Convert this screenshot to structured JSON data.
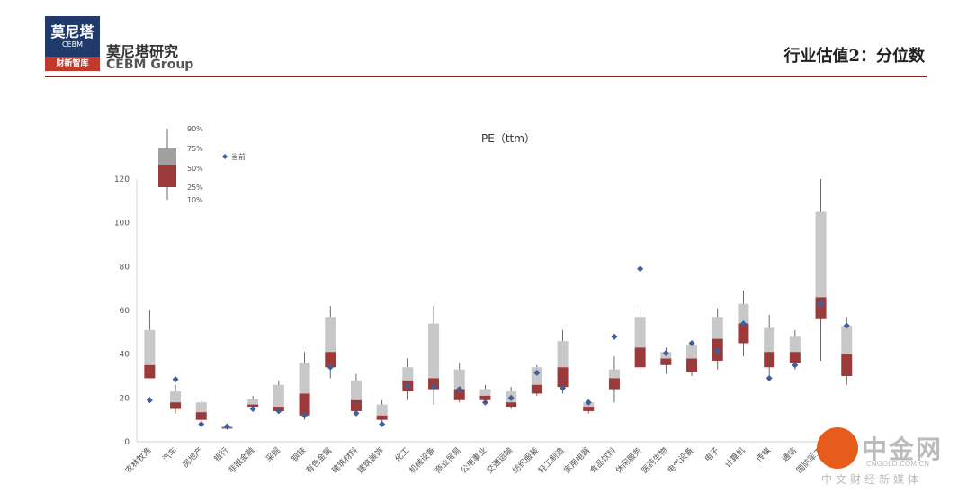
{
  "header": {
    "logo_line1": "莫尼塔",
    "logo_line2": "CEBM",
    "logo_line3": "财新智库",
    "brand_cn": "莫尼塔研究",
    "brand_en": "CEBM Group",
    "page_title": "行业估值2：分位数",
    "rule_color": "#8b1a1a"
  },
  "watermark": {
    "name": "中金网",
    "url": "CNGOLD.COM.CN",
    "subtitle": "中文财经新媒体"
  },
  "chart_data": {
    "type": "box",
    "title": "PE（ttm）",
    "ylim": [
      0,
      120
    ],
    "yticks": [
      0,
      20,
      40,
      60,
      80,
      100,
      120
    ],
    "legend": {
      "labels": [
        "90%",
        "75%",
        "50%",
        "25%",
        "10%"
      ],
      "current_label": "当前"
    },
    "colors": {
      "upper_box": "#c8c8c8",
      "lower_box": "#9b3a3a",
      "current": "#3d5f9e",
      "whisker": "#444444"
    },
    "categories": [
      "农林牧渔",
      "汽车",
      "房地产",
      "银行",
      "非银金融",
      "采掘",
      "钢铁",
      "有色金属",
      "建筑材料",
      "建筑装饰",
      "化工",
      "机械设备",
      "商业贸易",
      "公用事业",
      "交通运输",
      "纺织服装",
      "轻工制造",
      "家用电器",
      "食品饮料",
      "休闲服务",
      "医药生物",
      "电气设备",
      "电子",
      "计算机",
      "传媒",
      "通信",
      "国防军工",
      ""
    ],
    "p10": [
      29,
      13,
      9,
      5.5,
      15,
      13,
      10,
      29,
      13,
      9,
      19,
      17,
      18,
      18,
      15,
      21,
      22,
      13,
      18,
      31,
      31,
      30,
      33,
      39,
      30,
      33,
      37,
      26
    ],
    "p25": [
      29,
      15,
      10,
      6,
      16,
      14,
      12,
      34,
      14,
      10,
      23,
      24,
      19,
      19,
      16,
      22,
      25,
      14,
      24,
      34,
      35,
      32,
      37,
      45,
      34,
      36,
      56,
      30
    ],
    "p50": [
      35,
      18,
      13.5,
      6.5,
      17,
      16,
      22,
      41,
      19,
      12,
      28,
      29,
      24,
      21,
      18,
      26,
      34,
      16,
      29,
      43,
      38,
      38,
      47,
      54,
      41,
      41,
      66,
      40
    ],
    "p75": [
      51,
      23,
      18,
      7,
      19.5,
      26,
      36,
      57,
      28,
      17,
      34,
      54,
      33,
      24,
      23,
      34,
      46,
      18,
      33,
      57,
      41,
      44,
      57,
      63,
      52,
      48,
      105,
      53
    ],
    "p90": [
      60,
      26,
      19,
      7.5,
      21,
      28,
      41,
      62,
      31,
      19,
      38,
      62,
      36,
      26,
      25,
      35,
      51,
      19,
      39,
      61,
      43,
      46,
      61,
      69,
      58,
      51,
      120,
      57
    ],
    "current": [
      19,
      28.5,
      8,
      7,
      15,
      14,
      12,
      34,
      13,
      8,
      25.5,
      25,
      24,
      18,
      20,
      31.5,
      24.5,
      18,
      48,
      79,
      40.5,
      45,
      41.5,
      54,
      29,
      35,
      63,
      53
    ]
  }
}
